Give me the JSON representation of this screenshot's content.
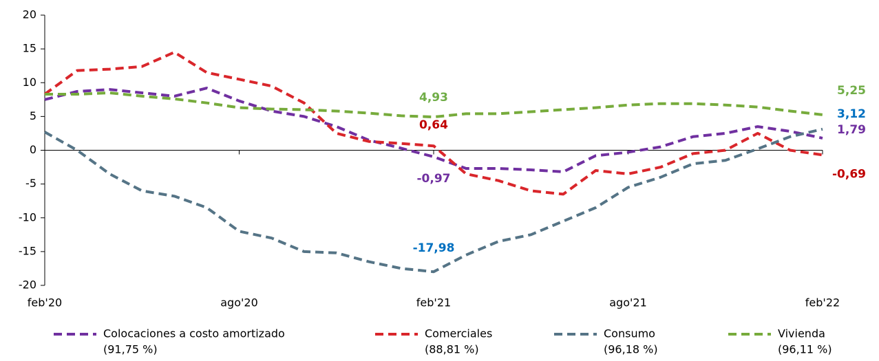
{
  "chart_data": {
    "type": "line",
    "x": [
      "feb'20",
      null,
      null,
      null,
      null,
      null,
      "ago'20",
      null,
      null,
      null,
      null,
      null,
      "feb'21",
      null,
      null,
      null,
      null,
      null,
      "ago'21",
      null,
      null,
      null,
      null,
      null,
      "feb'22"
    ],
    "ylim": [
      -20,
      20
    ],
    "yticks": [
      -20,
      -15,
      -10,
      -5,
      0,
      5,
      10,
      15,
      20
    ],
    "series": [
      {
        "name": "Colocaciones a costo amortizado",
        "note": "(91,75 %)",
        "color": "#7030a0",
        "label_color": "#7030a0",
        "values": [
          7.5,
          8.7,
          9.0,
          8.5,
          8.0,
          9.2,
          7.3,
          5.8,
          5.0,
          3.5,
          1.5,
          0.3,
          -0.97,
          -2.7,
          -2.7,
          -2.9,
          -3.2,
          -0.8,
          -0.3,
          0.5,
          2.0,
          2.5,
          3.5,
          2.8,
          1.79
        ],
        "value_labels": [
          null,
          null,
          null,
          null,
          null,
          null,
          null,
          null,
          null,
          null,
          null,
          null,
          "-0,97",
          null,
          null,
          null,
          null,
          null,
          null,
          null,
          null,
          null,
          null,
          null,
          "1,79"
        ]
      },
      {
        "name": "Comerciales",
        "note": "(88,81 %)",
        "color": "#d9262b",
        "label_color": "#c00000",
        "values": [
          8.3,
          11.8,
          12.0,
          12.4,
          14.5,
          11.5,
          10.5,
          9.5,
          7.0,
          2.5,
          1.3,
          1.0,
          0.64,
          -3.5,
          -4.5,
          -6.0,
          -6.5,
          -3.0,
          -3.5,
          -2.5,
          -0.5,
          0.0,
          2.5,
          0.0,
          -0.69
        ],
        "value_labels": [
          null,
          null,
          null,
          null,
          null,
          null,
          null,
          null,
          null,
          null,
          null,
          null,
          "0,64",
          null,
          null,
          null,
          null,
          null,
          null,
          null,
          null,
          null,
          null,
          null,
          "-0,69"
        ]
      },
      {
        "name": "Consumo",
        "note": "(96,18 %)",
        "color": "#557486",
        "label_color": "#0070c0",
        "values": [
          2.7,
          0.0,
          -3.5,
          -6.0,
          -6.8,
          -8.5,
          -12.0,
          -13.0,
          -15.0,
          -15.2,
          -16.5,
          -17.5,
          -17.98,
          -15.5,
          -13.5,
          -12.5,
          -10.5,
          -8.5,
          -5.5,
          -4.0,
          -2.0,
          -1.5,
          0.2,
          2.0,
          3.12
        ],
        "value_labels": [
          null,
          null,
          null,
          null,
          null,
          null,
          null,
          null,
          null,
          null,
          null,
          null,
          "-17,98",
          null,
          null,
          null,
          null,
          null,
          null,
          null,
          null,
          null,
          null,
          null,
          "3,12"
        ]
      },
      {
        "name": "Vivienda",
        "note": "(96,11 %)",
        "color": "#77ab3c",
        "label_color": "#70ad47",
        "values": [
          8.3,
          8.3,
          8.5,
          8.0,
          7.6,
          7.0,
          6.3,
          6.1,
          6.0,
          5.8,
          5.5,
          5.1,
          4.93,
          5.4,
          5.4,
          5.7,
          6.0,
          6.3,
          6.7,
          6.9,
          6.9,
          6.7,
          6.4,
          5.8,
          5.25
        ],
        "value_labels": [
          null,
          null,
          null,
          null,
          null,
          null,
          null,
          null,
          null,
          null,
          null,
          null,
          "4,93",
          null,
          null,
          null,
          null,
          null,
          null,
          null,
          null,
          null,
          null,
          null,
          "5,25"
        ]
      }
    ]
  }
}
